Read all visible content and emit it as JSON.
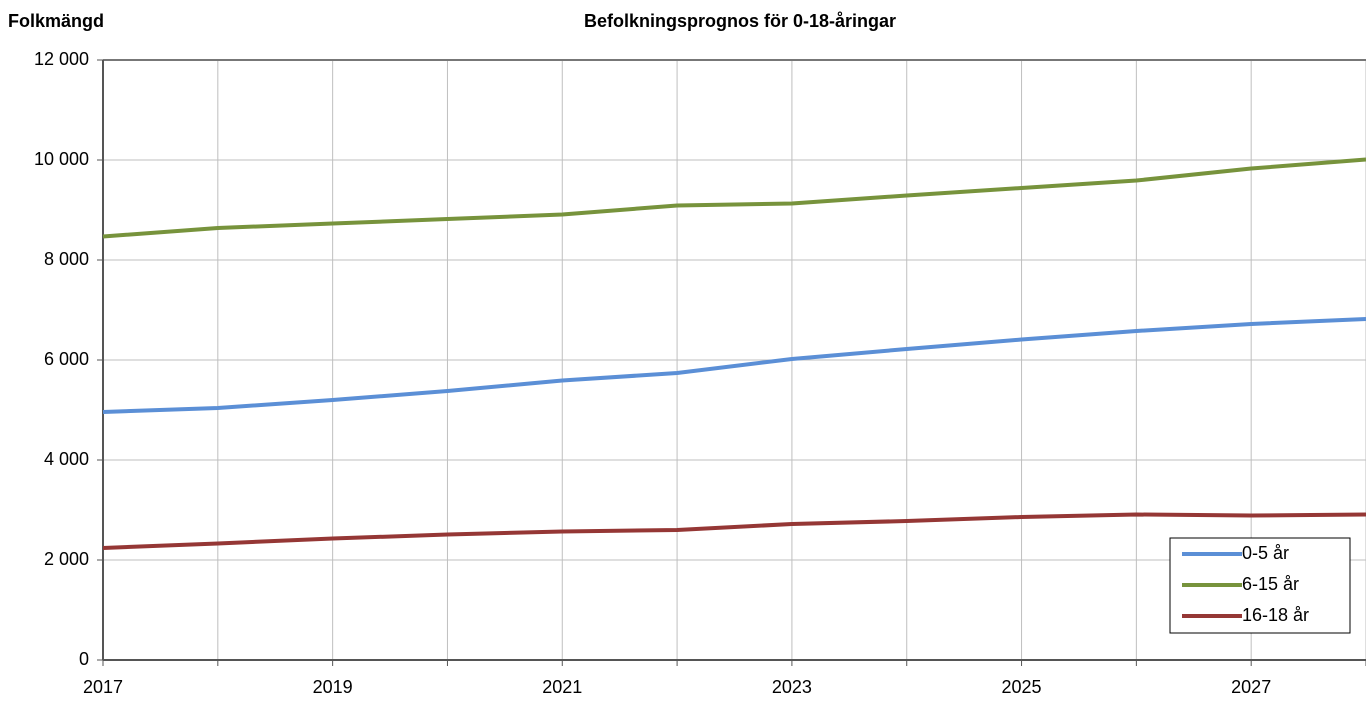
{
  "chart_data": {
    "type": "line",
    "title": "Befolkningsprognos för 0-18-åringar",
    "y_label": "Folkmängd",
    "x": [
      2017,
      2018,
      2019,
      2020,
      2021,
      2022,
      2023,
      2024,
      2025,
      2026,
      2027,
      2028
    ],
    "series": [
      {
        "name": "0-5 år",
        "color": "#5b8fd6",
        "values": [
          4960,
          5040,
          5200,
          5380,
          5590,
          5740,
          6020,
          6220,
          6410,
          6580,
          6720,
          6820
        ]
      },
      {
        "name": "6-15 år",
        "color": "#77933c",
        "values": [
          8470,
          8640,
          8730,
          8820,
          8910,
          9090,
          9130,
          9290,
          9440,
          9590,
          9830,
          10010
        ]
      },
      {
        "name": "16-18 år",
        "color": "#953735",
        "values": [
          2240,
          2330,
          2430,
          2510,
          2570,
          2600,
          2720,
          2780,
          2860,
          2910,
          2890,
          2910
        ]
      }
    ],
    "xlim": [
      2017,
      2028
    ],
    "xticks": [
      2017,
      2019,
      2021,
      2023,
      2025,
      2027
    ],
    "x_minor_ticks": [
      2018,
      2020,
      2022,
      2024,
      2026,
      2028
    ],
    "ylim": [
      0,
      12000
    ],
    "yticks": [
      0,
      {
        "value": 2000,
        "label": "2 000"
      },
      {
        "value": 4000,
        "label": "4 000"
      },
      {
        "value": 6000,
        "label": "6 000"
      },
      {
        "value": 8000,
        "label": "8 000"
      },
      {
        "value": 10000,
        "label": "10 000"
      },
      {
        "value": 12000,
        "label": "12 000"
      }
    ],
    "grid": true,
    "legend": "lower right"
  }
}
